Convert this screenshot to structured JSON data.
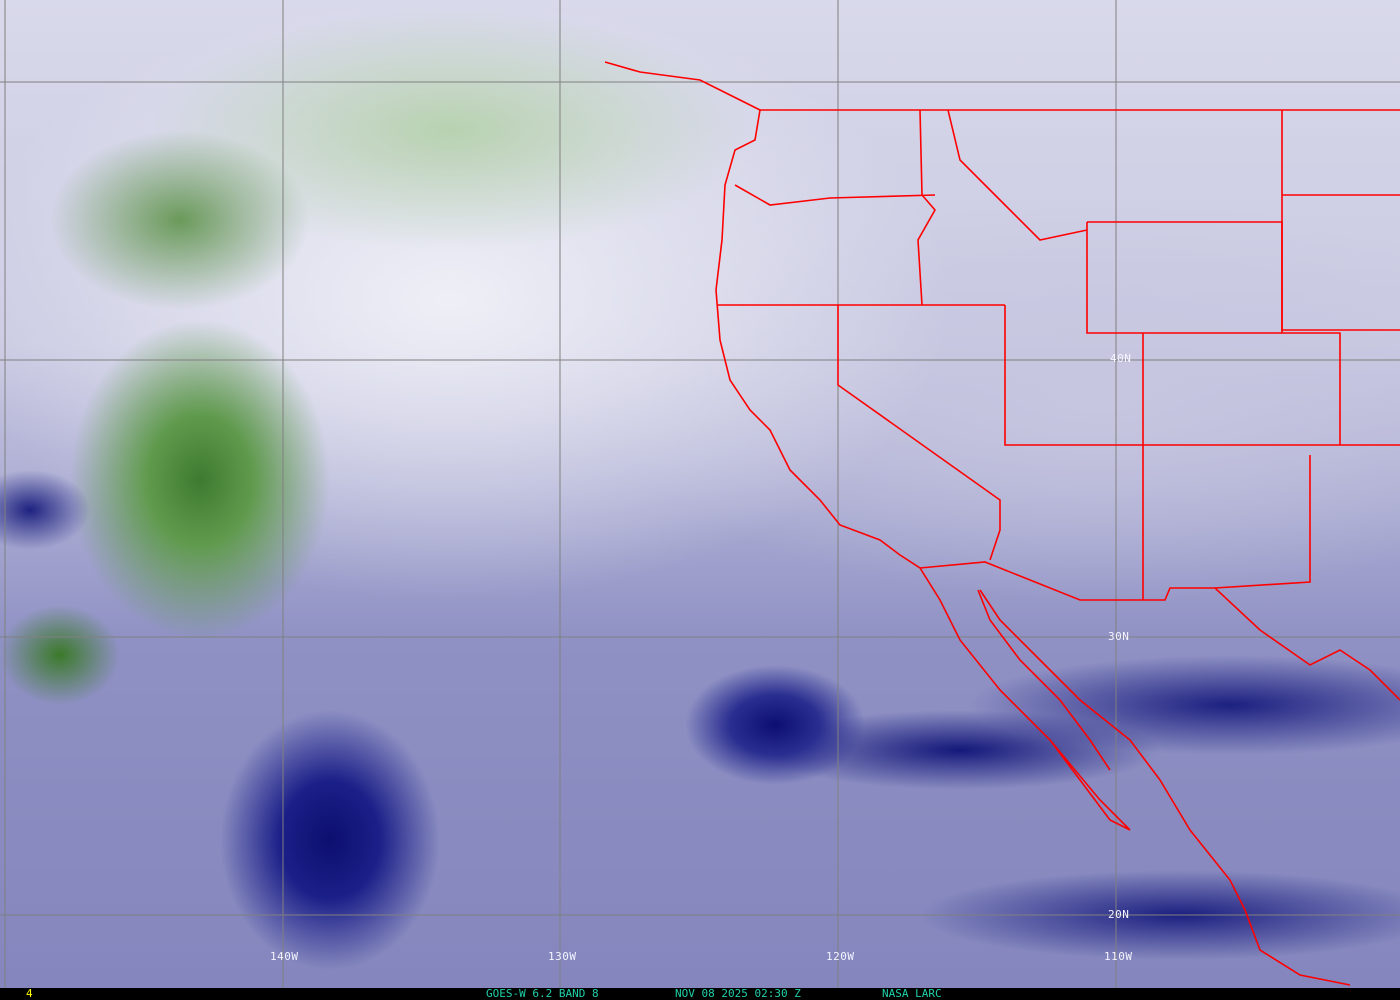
{
  "map": {
    "longitude_labels": [
      "140W",
      "130W",
      "120W",
      "110W"
    ],
    "latitude_labels": [
      "40N",
      "30N",
      "20N"
    ],
    "colors": {
      "border": "#ff0000",
      "grid": "#808080",
      "label": "#ffffff",
      "moist": "#3d7a2e",
      "dry": "#0c0f6e"
    }
  },
  "status_bar": {
    "frame_number": "4",
    "product": "GOES-W 6.2 BAND 8",
    "timestamp": "NOV 08 2025 02:30 Z",
    "source": "NASA LARC",
    "colors": {
      "frame": "#ffff00",
      "text": "#20d0a8"
    }
  }
}
